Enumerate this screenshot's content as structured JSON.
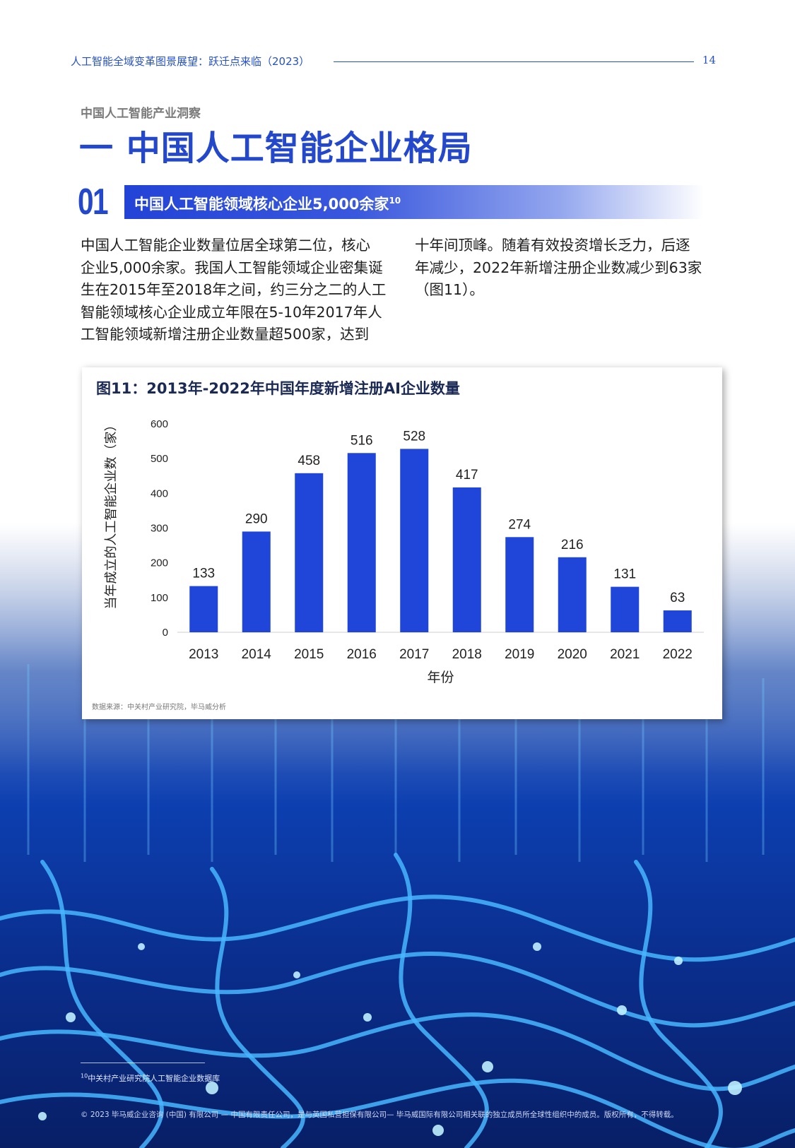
{
  "header": {
    "title": "人工智能全域变革图景展望：跃迁点来临（2023）",
    "page_number": "14"
  },
  "section_label": "中国人工智能产业洞察",
  "page_title": "一 中国人工智能企业格局",
  "subsection": {
    "number": "01",
    "heading": "中国人工智能领域核心企业5,000余家",
    "footnote_ref": "10"
  },
  "body": {
    "left_lines": [
      "中国人工智能企业数量位居全球第二位，核心",
      "企业5,000余家。我国人工智能领域企业密集诞",
      "生在2015年至2018年之间，约三分之二的人工",
      "智能领域核心企业成立年限在5-10年2017年人",
      "工智能领域新增注册企业数量超500家，达到"
    ],
    "right_lines": [
      "十年间顶峰。随着有效投资增长乏力，后逐",
      "年减少，2022年新增注册企业数减少到63家",
      "（图11）。"
    ]
  },
  "chart_data": {
    "type": "bar",
    "title": "图11：2013年-2022年中国年度新增注册AI企业数量",
    "xlabel": "年份",
    "ylabel": "当年成立的人工智能企业数（家）",
    "categories": [
      "2013",
      "2014",
      "2015",
      "2016",
      "2017",
      "2018",
      "2019",
      "2020",
      "2021",
      "2022"
    ],
    "values": [
      133,
      290,
      458,
      516,
      528,
      417,
      274,
      216,
      131,
      63
    ],
    "ylim": [
      0,
      600
    ],
    "yticks": [
      "0",
      "100",
      "200",
      "300",
      "400",
      "500",
      "600"
    ],
    "bar_color": "#1f45d9",
    "grid": false,
    "source": "数据来源：中关村产业研究院，毕马威分析"
  },
  "footer": {
    "footnote_number": "10",
    "footnote_text": "中关村产业研究院人工智能企业数据库",
    "copyright": "© 2023 毕马威企业咨询 (中国) 有限公司 — 中国有限责任公司，是与英国私营担保有限公司— 毕马威国际有限公司相关联的独立成员所全球性组织中的成员。版权所有，不得转载。"
  },
  "colors": {
    "accent": "#2448cc",
    "bar": "#1f45d9",
    "background_art": "#0d3fb0"
  }
}
